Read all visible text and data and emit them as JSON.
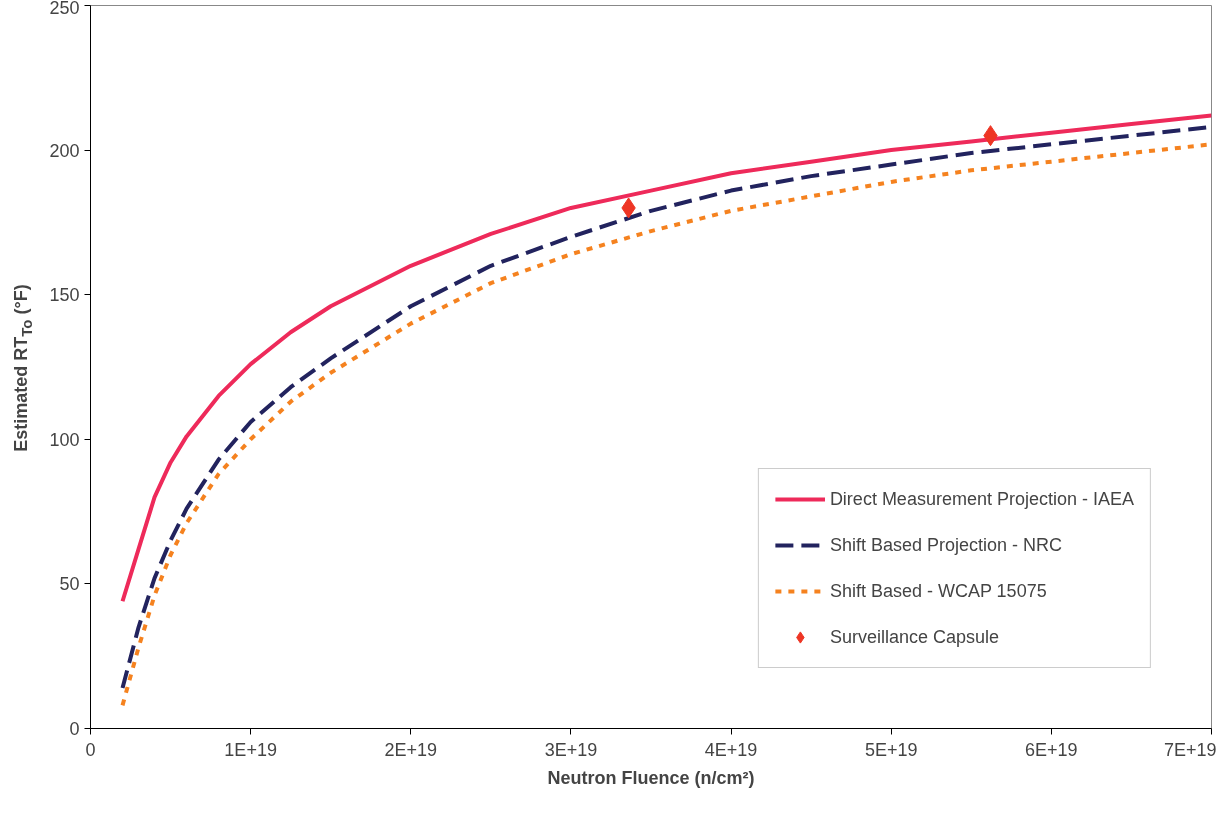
{
  "chart_data": {
    "type": "line",
    "xlabel": "Neutron Fluence (n/cm²)",
    "ylabel": "Estimated RT$_{To}$ (°F)",
    "xlim": [
      0,
      7e+19
    ],
    "ylim": [
      0,
      250
    ],
    "xticks": [
      0,
      {
        "value": 1e+19,
        "label": "1E+19"
      },
      {
        "value": 2e+19,
        "label": "2E+19"
      },
      {
        "value": 3e+19,
        "label": "3E+19"
      },
      {
        "value": 4e+19,
        "label": "4E+19"
      },
      {
        "value": 5e+19,
        "label": "5E+19"
      },
      {
        "value": 6e+19,
        "label": "6E+19"
      },
      {
        "value": 7e+19,
        "label": "7E+19"
      }
    ],
    "yticks": [
      0,
      50,
      100,
      150,
      200,
      250
    ],
    "grid": false,
    "legend": "bottom right",
    "x": [
      2e+18,
      3e+18,
      4e+18,
      5e+18,
      6e+18,
      8e+18,
      1e+19,
      1.25e+19,
      1.5e+19,
      2e+19,
      2.5e+19,
      3e+19,
      3.5e+19,
      4e+19,
      4.5e+19,
      5e+19,
      5.5e+19,
      6e+19,
      6.5e+19,
      7e+19
    ],
    "series": [
      {
        "name": "Direct Measurement Projection - IAEA",
        "color": "#ee2a5a",
        "line_style": "solid",
        "values": [
          44,
          62,
          80,
          92,
          101,
          115,
          126,
          137,
          146,
          160,
          171,
          180,
          186,
          192,
          196,
          200,
          203,
          206,
          209,
          212
        ]
      },
      {
        "name": "Shift Based Projection - NRC",
        "color": "#22235e",
        "line_style": "dashed",
        "values": [
          14,
          35,
          52,
          65,
          76,
          93,
          106,
          118,
          128,
          146,
          160,
          170,
          179,
          186,
          191,
          195,
          199,
          202,
          205,
          208
        ]
      },
      {
        "name": "Shift Based - WCAP 15075",
        "color": "#f5821f",
        "line_style": "dotted",
        "values": [
          8,
          28,
          46,
          60,
          71,
          88,
          100,
          113,
          123,
          140,
          154,
          164,
          172,
          179,
          184,
          189,
          193,
          196,
          199,
          202
        ]
      },
      {
        "name": "Surveillance Capsule",
        "type": "scatter",
        "marker": "diamond",
        "color": "#ee3524",
        "x": [
          3.36e+19,
          5.62e+19
        ],
        "values": [
          180,
          205
        ]
      }
    ]
  }
}
